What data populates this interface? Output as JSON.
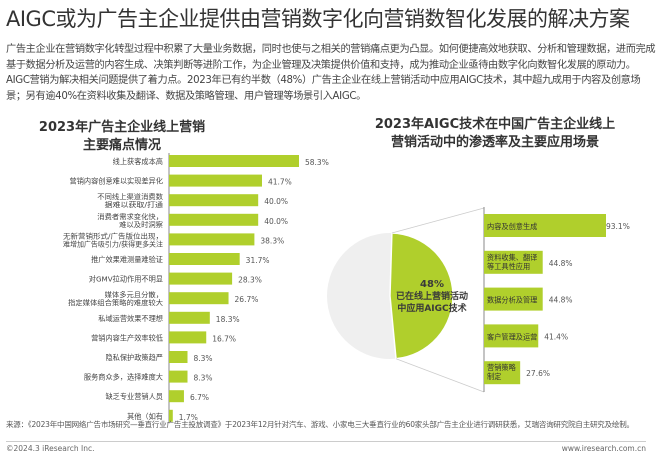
{
  "title": "AIGC或为广告主企业提供由营销数字化向营销数智化发展的解决方案",
  "intro": "广告主企业在营销数字化转型过程中积累了大量业务数据，同时也使与之相关的营销痛点更为凸显。如何便捷高效地获取、分析和管理数据，进而完成基于数据分析及运营的内容生成、决策判断等进阶工作，为企业管理及决策提供价值和支持，成为推动企业亟待由数字化向数智化发展的原动力。AIGC营销为解决相关问题提供了着力点。2023年已有约半数（48%）广告主企业在线上营销活动中应用AIGC技术，其中超九成用于内容及创意场景；另有逾40%在资料收集及翻译、数据及策略管理、用户管理等场景引入AIGC。",
  "colors": {
    "bar": "#b0cf2c",
    "pie_rest": "#efefef",
    "text": "#333333"
  },
  "chart_data": [
    {
      "type": "bar",
      "orientation": "horizontal",
      "title_lines": [
        "2023年广告主企业线上营销",
        "主要痛点情况"
      ],
      "categories": [
        "线上获客成本高",
        "营销内容创意难以实现差异化",
        "不同线上渠道消费数据难以获取/打通",
        "消费者需求变化快，难以及时洞察",
        "无新营销形式/广告版位出现，难增加广告吸引力/获得更多关注",
        "推广效果难测量难验证",
        "对GMV拉动作用不明显",
        "媒体多元且分散，指定媒体组合策略的难度较大",
        "私域运营效果不理想",
        "营销内容生产效率较低",
        "隐私保护政策趋严",
        "服务商众多，选择难度大",
        "缺乏专业营销人员",
        "其他（如有"
      ],
      "values": [
        58.3,
        41.7,
        40.0,
        40.0,
        38.3,
        31.7,
        28.3,
        26.7,
        18.3,
        16.7,
        8.3,
        8.3,
        6.7,
        1.7
      ],
      "labels": [
        "58.3%",
        "41.7%",
        "40.0%",
        "40.0%",
        "38.3%",
        "31.7%",
        "28.3%",
        "26.7%",
        "18.3%",
        "16.7%",
        "8.3%",
        "8.3%",
        "6.7%",
        "1.7%"
      ],
      "unit": "%"
    },
    {
      "type": "pie",
      "slices": [
        {
          "value": 48,
          "label_lines": [
            "48%",
            "已在线上营销活动",
            "中应用AIGC技术"
          ]
        },
        {
          "value": 52
        }
      ]
    },
    {
      "type": "bar",
      "orientation": "horizontal",
      "title_lines": [
        "2023年AIGC技术在中国广告主企业线上",
        "营销活动中的渗透率及主要应用场景"
      ],
      "categories": [
        [
          "内容及创意生成"
        ],
        [
          "资料收集、翻译",
          "等工具性应用"
        ],
        [
          "数据分析及管理"
        ],
        [
          "客户管理及运营"
        ],
        [
          "营销策略",
          "制定"
        ]
      ],
      "values": [
        93.1,
        44.8,
        44.8,
        41.4,
        27.6
      ],
      "labels": [
        "93.1%",
        "44.8%",
        "44.8%",
        "41.4%",
        "27.6%"
      ],
      "unit": "%"
    }
  ],
  "footer": {
    "source": "来源：《2023年中国网络广告市场研究—垂直行业广告主投放调查》于2023年12月针对汽车、游戏、小家电三大垂直行业的60家头部广告主企业进行调研获悉，艾瑞咨询研究院自主研究及绘制。",
    "copyright": "©2024.3 iResearch Inc.",
    "website": "www.iresearch.com.cn"
  }
}
